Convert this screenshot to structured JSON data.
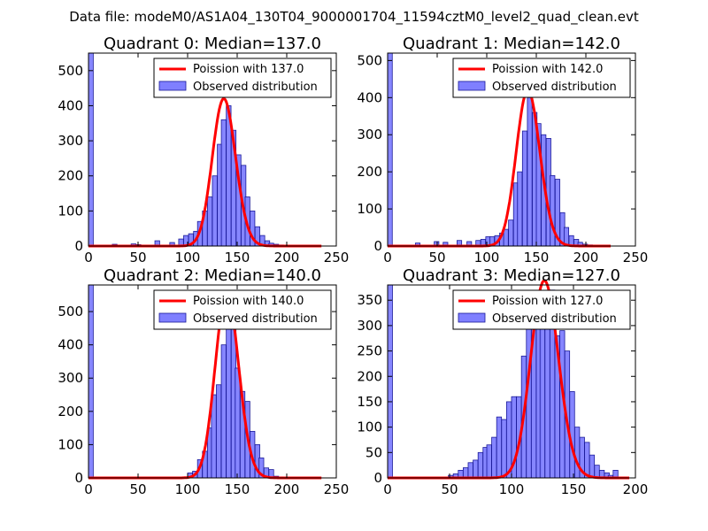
{
  "figure_title": "Data file: modeM0/AS1A04_130T04_9000001704_11594cztM0_level2_quad_clean.evt",
  "colors": {
    "poisson": "#ff0000",
    "hist_fill": "#7f7fff",
    "hist_edge": "#1a1a99",
    "axes": "#000000"
  },
  "chart_data": [
    {
      "type": "bar",
      "title": "Quadrant 0: Median=137.0",
      "xlim": [
        0,
        250
      ],
      "ylim": [
        0,
        550
      ],
      "xticks": [
        0,
        50,
        100,
        150,
        200,
        250
      ],
      "yticks": [
        0,
        100,
        200,
        300,
        400,
        500
      ],
      "legend": {
        "placement": "top-right",
        "line_label": "Poission with 137.0",
        "bar_label": "Observed distribution"
      },
      "bin_width": 4.8,
      "median": 137.0,
      "hist": [
        [
          0,
          550
        ],
        [
          24,
          5
        ],
        [
          43,
          6
        ],
        [
          48,
          4
        ],
        [
          67,
          15
        ],
        [
          82,
          10
        ],
        [
          91,
          20
        ],
        [
          96,
          30
        ],
        [
          101,
          35
        ],
        [
          106,
          42
        ],
        [
          110,
          70
        ],
        [
          115,
          100
        ],
        [
          120,
          140
        ],
        [
          125,
          200
        ],
        [
          130,
          290
        ],
        [
          134,
          360
        ],
        [
          139,
          400
        ],
        [
          144,
          330
        ],
        [
          149,
          260
        ],
        [
          154,
          230
        ],
        [
          158,
          140
        ],
        [
          163,
          100
        ],
        [
          168,
          55
        ],
        [
          173,
          30
        ],
        [
          178,
          15
        ],
        [
          182,
          8
        ],
        [
          187,
          5
        ],
        [
          192,
          3
        ],
        [
          197,
          2
        ]
      ]
    },
    {
      "type": "bar",
      "title": "Quadrant 1: Median=142.0",
      "xlim": [
        0,
        250
      ],
      "ylim": [
        0,
        520
      ],
      "xticks": [
        0,
        50,
        100,
        150,
        200,
        250
      ],
      "yticks": [
        0,
        100,
        200,
        300,
        400,
        500
      ],
      "legend": {
        "placement": "top-right",
        "line_label": "Poission with 142.0",
        "bar_label": "Observed distribution"
      },
      "bin_width": 4.7,
      "median": 142.0,
      "hist": [
        [
          0,
          520
        ],
        [
          28,
          8
        ],
        [
          47,
          12
        ],
        [
          56,
          10
        ],
        [
          70,
          15
        ],
        [
          80,
          12
        ],
        [
          89,
          15
        ],
        [
          94,
          18
        ],
        [
          99,
          25
        ],
        [
          103,
          25
        ],
        [
          108,
          28
        ],
        [
          113,
          35
        ],
        [
          117,
          45
        ],
        [
          122,
          70
        ],
        [
          127,
          170
        ],
        [
          131,
          200
        ],
        [
          136,
          310
        ],
        [
          141,
          400
        ],
        [
          146,
          360
        ],
        [
          150,
          330
        ],
        [
          155,
          300
        ],
        [
          160,
          290
        ],
        [
          164,
          190
        ],
        [
          169,
          180
        ],
        [
          174,
          90
        ],
        [
          178,
          50
        ],
        [
          183,
          28
        ],
        [
          188,
          18
        ],
        [
          192,
          10
        ],
        [
          197,
          5
        ],
        [
          202,
          3
        ],
        [
          207,
          2
        ]
      ]
    },
    {
      "type": "bar",
      "title": "Quadrant 2: Median=140.0",
      "xlim": [
        0,
        250
      ],
      "ylim": [
        0,
        580
      ],
      "xticks": [
        0,
        50,
        100,
        150,
        200,
        250
      ],
      "yticks": [
        0,
        100,
        200,
        300,
        400,
        500
      ],
      "legend": {
        "placement": "top-right",
        "line_label": "Poission with 140.0",
        "bar_label": "Observed distribution"
      },
      "bin_width": 4.8,
      "median": 140.0,
      "hist": [
        [
          0,
          580
        ],
        [
          100,
          15
        ],
        [
          105,
          20
        ],
        [
          110,
          55
        ],
        [
          115,
          80
        ],
        [
          120,
          150
        ],
        [
          124,
          250
        ],
        [
          129,
          280
        ],
        [
          134,
          400
        ],
        [
          139,
          530
        ],
        [
          144,
          450
        ],
        [
          148,
          330
        ],
        [
          153,
          260
        ],
        [
          158,
          230
        ],
        [
          163,
          140
        ],
        [
          168,
          100
        ],
        [
          172,
          60
        ],
        [
          177,
          30
        ],
        [
          182,
          25
        ],
        [
          187,
          5
        ],
        [
          192,
          3
        ]
      ]
    },
    {
      "type": "bar",
      "title": "Quadrant 3: Median=127.0",
      "xlim": [
        0,
        200
      ],
      "ylim": [
        0,
        380
      ],
      "xticks": [
        0,
        50,
        100,
        150,
        200
      ],
      "yticks": [
        0,
        50,
        100,
        150,
        200,
        250,
        300,
        350
      ],
      "legend": {
        "placement": "top-right",
        "line_label": "Poission with 127.0",
        "bar_label": "Observed distribution"
      },
      "bin_width": 3.9,
      "median": 127.0,
      "hist": [
        [
          0,
          380
        ],
        [
          49,
          5
        ],
        [
          53,
          8
        ],
        [
          57,
          15
        ],
        [
          61,
          20
        ],
        [
          65,
          30
        ],
        [
          69,
          35
        ],
        [
          73,
          50
        ],
        [
          77,
          60
        ],
        [
          80,
          65
        ],
        [
          84,
          80
        ],
        [
          88,
          120
        ],
        [
          92,
          115
        ],
        [
          96,
          150
        ],
        [
          100,
          160
        ],
        [
          104,
          160
        ],
        [
          108,
          240
        ],
        [
          112,
          300
        ],
        [
          116,
          330
        ],
        [
          120,
          360
        ],
        [
          123,
          300
        ],
        [
          127,
          360
        ],
        [
          131,
          370
        ],
        [
          135,
          280
        ],
        [
          139,
          290
        ],
        [
          143,
          250
        ],
        [
          147,
          170
        ],
        [
          151,
          100
        ],
        [
          155,
          80
        ],
        [
          159,
          70
        ],
        [
          163,
          45
        ],
        [
          167,
          25
        ],
        [
          171,
          15
        ],
        [
          175,
          10
        ],
        [
          178,
          5
        ],
        [
          182,
          15
        ]
      ]
    }
  ]
}
